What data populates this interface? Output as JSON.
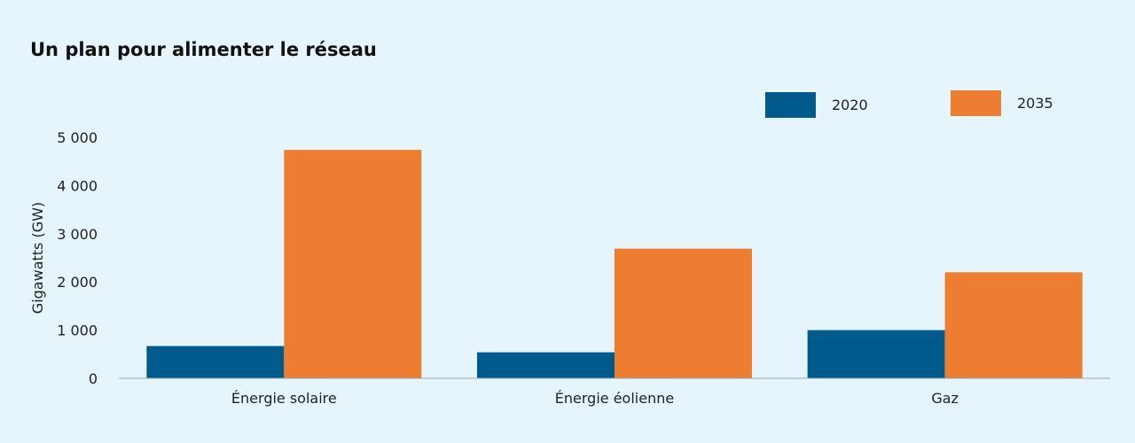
{
  "chart_data": {
    "type": "bar",
    "title": "Un plan pour alimenter le réseau",
    "ylabel": "Gigawatts (GW)",
    "xlabel": "",
    "categories": [
      "Énergie solaire",
      "Énergie éolienne",
      "Gaz"
    ],
    "series": [
      {
        "name": "2020",
        "values": [
          670,
          540,
          1000
        ],
        "color": "#005a8c"
      },
      {
        "name": "2035",
        "values": [
          4740,
          2690,
          2200
        ],
        "color": "#ed7d31"
      }
    ],
    "ylim": [
      0,
      5000
    ],
    "yticks": [
      0,
      1000,
      2000,
      3000,
      4000,
      5000
    ],
    "ytick_labels": [
      "0",
      "1 000",
      "2 000",
      "3 000",
      "4 000",
      "5 000"
    ],
    "grid": false,
    "legend_position": "top-right"
  }
}
